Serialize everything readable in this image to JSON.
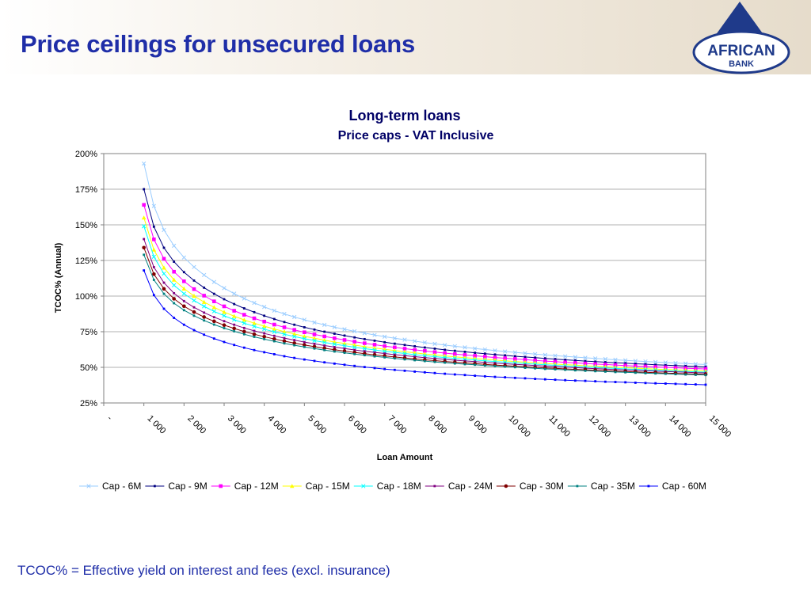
{
  "header": {
    "title": "Price ceilings for unsecured loans"
  },
  "logo": {
    "line1": "AFRICAN",
    "line2": "BANK"
  },
  "footnote": "TCOC% = Effective yield on interest and fees (excl. insurance)",
  "colors": {
    "title": "#1f2ea8"
  },
  "chart_data": {
    "type": "line",
    "title": "Long-term loans",
    "subtitle": "Price caps - VAT Inclusive",
    "xlabel": "Loan Amount",
    "ylabel": "TCOC% (Annual)",
    "ylim": [
      25,
      200
    ],
    "yticks": [
      "25%",
      "50%",
      "75%",
      "100%",
      "125%",
      "150%",
      "175%",
      "200%"
    ],
    "xlim": [
      0,
      15000
    ],
    "xticks": [
      "-",
      "1 000",
      "2 000",
      "3 000",
      "4 000",
      "5 000",
      "6 000",
      "7 000",
      "8 000",
      "9 000",
      "10 000",
      "11 000",
      "12 000",
      "13 000",
      "14 000",
      "15 000"
    ],
    "grid": true,
    "legend": "bottom",
    "x": [
      1000,
      1250,
      1500,
      1750,
      2000,
      2250,
      2500,
      2750,
      3000,
      3250,
      3500,
      3750,
      4000,
      4250,
      4500,
      4750,
      5000,
      5250,
      5500,
      5750,
      6000,
      6250,
      6500,
      6750,
      7000,
      7250,
      7500,
      7750,
      8000,
      8250,
      8500,
      8750,
      9000,
      9250,
      9500,
      9750,
      10000,
      10250,
      10500,
      10750,
      11000,
      11250,
      11500,
      11750,
      12000,
      12250,
      12500,
      12750,
      13000,
      13250,
      13500,
      13750,
      14000,
      14250,
      14500,
      14750,
      15000
    ],
    "series": [
      {
        "name": "Cap - 6M",
        "color": "#99ccff",
        "marker": "x",
        "values": [
          193.0,
          163.2,
          146.4,
          135.3,
          127.1,
          120.4,
          114.8,
          109.9,
          105.6,
          101.7,
          98.3,
          95.2,
          92.4,
          89.8,
          87.5,
          85.3,
          83.4,
          81.5,
          79.8,
          78.2,
          76.7,
          75.3,
          74.0,
          72.7,
          71.5,
          70.4,
          69.4,
          68.4,
          67.4,
          66.5,
          65.6,
          64.8,
          64.0,
          63.2,
          62.5,
          61.8,
          61.1,
          60.5,
          59.9,
          59.3,
          58.7,
          58.2,
          57.7,
          57.2,
          56.7,
          56.2,
          55.8,
          55.3,
          54.9,
          54.5,
          54.1,
          53.7,
          53.4,
          53.0,
          52.7,
          52.3,
          52.0
        ]
      },
      {
        "name": "Cap - 9M",
        "color": "#000080",
        "marker": "dash",
        "values": [
          175.0,
          148.7,
          133.9,
          124.1,
          116.8,
          110.9,
          105.9,
          101.6,
          97.8,
          94.4,
          91.4,
          88.7,
          86.2,
          83.9,
          81.8,
          79.9,
          78.1,
          76.5,
          75.0,
          73.6,
          72.3,
          71.0,
          69.8,
          68.7,
          67.6,
          66.6,
          65.7,
          64.8,
          63.9,
          63.1,
          62.3,
          61.6,
          60.9,
          60.2,
          59.6,
          59.0,
          58.4,
          57.8,
          57.3,
          56.8,
          56.3,
          55.8,
          55.3,
          54.9,
          54.4,
          54.0,
          53.6,
          53.2,
          52.9,
          52.5,
          52.2,
          51.8,
          51.5,
          51.2,
          50.9,
          50.6,
          50.3
        ]
      },
      {
        "name": "Cap - 12M",
        "color": "#ff00ff",
        "marker": "square",
        "values": [
          164.0,
          139.8,
          126.2,
          117.1,
          110.4,
          104.9,
          100.3,
          96.3,
          92.8,
          89.7,
          86.9,
          84.4,
          82.1,
          80.0,
          78.1,
          76.3,
          74.6,
          73.1,
          71.7,
          70.4,
          69.2,
          68.0,
          66.9,
          65.9,
          64.9,
          64.0,
          63.1,
          62.3,
          61.5,
          60.7,
          60.0,
          59.3,
          58.7,
          58.1,
          57.5,
          56.9,
          56.4,
          55.9,
          55.4,
          54.9,
          54.4,
          54.0,
          53.5,
          53.1,
          52.7,
          52.3,
          52.0,
          51.6,
          51.3,
          50.9,
          50.6,
          50.3,
          50.0,
          49.7,
          49.4,
          49.1,
          48.9
        ]
      },
      {
        "name": "Cap - 15M",
        "color": "#ffff00",
        "marker": "triangle",
        "values": [
          155.0,
          132.5,
          119.9,
          111.4,
          105.2,
          100.1,
          95.8,
          92.1,
          88.8,
          85.9,
          83.3,
          81.0,
          78.9,
          76.9,
          75.1,
          73.4,
          71.8,
          70.4,
          69.1,
          67.8,
          66.7,
          65.6,
          64.5,
          63.6,
          62.6,
          61.8,
          60.9,
          60.2,
          59.4,
          58.7,
          58.0,
          57.4,
          56.8,
          56.2,
          55.6,
          55.1,
          54.6,
          54.1,
          53.6,
          53.2,
          52.7,
          52.3,
          51.9,
          51.5,
          51.1,
          50.8,
          50.4,
          50.1,
          49.8,
          49.4,
          49.1,
          48.8,
          48.5,
          48.3,
          48.0,
          47.7,
          47.5
        ]
      },
      {
        "name": "Cap - 18M",
        "color": "#00ffff",
        "marker": "x",
        "values": [
          149.0,
          127.6,
          115.7,
          107.6,
          101.7,
          96.9,
          92.8,
          89.3,
          86.2,
          83.4,
          81.0,
          78.8,
          76.8,
          74.9,
          73.2,
          71.6,
          70.1,
          68.7,
          67.5,
          66.3,
          65.2,
          64.1,
          63.1,
          62.2,
          61.3,
          60.5,
          59.7,
          58.9,
          58.2,
          57.5,
          56.9,
          56.3,
          55.7,
          55.1,
          54.6,
          54.1,
          53.6,
          53.1,
          52.6,
          52.2,
          51.8,
          51.4,
          51.0,
          50.6,
          50.2,
          49.9,
          49.5,
          49.2,
          48.9,
          48.6,
          48.3,
          48.0,
          47.7,
          47.4,
          47.1,
          46.9,
          46.6
        ]
      },
      {
        "name": "Cap - 24M",
        "color": "#800080",
        "marker": "dash",
        "values": [
          140.0,
          120.3,
          109.4,
          102.0,
          96.5,
          92.1,
          88.4,
          85.2,
          82.4,
          79.9,
          77.6,
          75.6,
          73.8,
          72.1,
          70.5,
          69.1,
          67.7,
          66.5,
          65.3,
          64.2,
          63.2,
          62.2,
          61.3,
          60.5,
          59.7,
          58.9,
          58.2,
          57.5,
          56.8,
          56.2,
          55.6,
          55.0,
          54.5,
          54.0,
          53.5,
          53.0,
          52.5,
          52.1,
          51.7,
          51.3,
          50.9,
          50.5,
          50.1,
          49.8,
          49.4,
          49.1,
          48.8,
          48.5,
          48.2,
          47.9,
          47.6,
          47.3,
          47.1,
          46.8,
          46.6,
          46.3,
          46.1
        ]
      },
      {
        "name": "Cap - 30M",
        "color": "#800000",
        "marker": "circle",
        "values": [
          134.0,
          115.4,
          105.1,
          98.1,
          92.9,
          88.8,
          85.3,
          82.3,
          79.6,
          77.3,
          75.1,
          73.2,
          71.5,
          69.9,
          68.4,
          67.0,
          65.7,
          64.5,
          63.4,
          62.4,
          61.4,
          60.5,
          59.6,
          58.8,
          58.0,
          57.3,
          56.6,
          55.9,
          55.3,
          54.7,
          54.1,
          53.6,
          53.1,
          52.6,
          52.1,
          51.6,
          51.2,
          50.8,
          50.4,
          50.0,
          49.6,
          49.3,
          48.9,
          48.6,
          48.3,
          48.0,
          47.7,
          47.4,
          47.1,
          46.8,
          46.5,
          46.3,
          46.0,
          45.8,
          45.5,
          45.3,
          45.1
        ]
      },
      {
        "name": "Cap - 35M",
        "color": "#008080",
        "marker": "dash",
        "values": [
          129.0,
          111.4,
          101.6,
          95.0,
          90.1,
          86.2,
          82.9,
          80.0,
          77.5,
          75.3,
          73.2,
          71.4,
          69.8,
          68.3,
          66.8,
          65.5,
          64.3,
          63.2,
          62.1,
          61.1,
          60.2,
          59.3,
          58.5,
          57.7,
          57.0,
          56.3,
          55.6,
          55.0,
          54.4,
          53.8,
          53.3,
          52.7,
          52.2,
          51.8,
          51.3,
          50.9,
          50.5,
          50.1,
          49.7,
          49.3,
          48.9,
          48.6,
          48.3,
          47.9,
          47.6,
          47.3,
          47.0,
          46.7,
          46.5,
          46.2,
          45.9,
          45.7,
          45.5,
          45.2,
          45.0,
          44.8,
          44.6
        ]
      },
      {
        "name": "Cap - 60M",
        "color": "#0000ff",
        "marker": "dash",
        "values": [
          118.0,
          100.7,
          91.1,
          84.7,
          79.9,
          76.1,
          72.9,
          70.2,
          67.8,
          65.7,
          63.8,
          62.1,
          60.6,
          59.2,
          57.8,
          56.6,
          55.5,
          54.5,
          53.5,
          52.6,
          51.8,
          51.0,
          50.2,
          49.5,
          48.8,
          48.2,
          47.6,
          47.0,
          46.5,
          46.0,
          45.5,
          45.0,
          44.6,
          44.1,
          43.7,
          43.3,
          43.0,
          42.6,
          42.3,
          41.9,
          41.6,
          41.3,
          41.0,
          40.7,
          40.5,
          40.2,
          39.9,
          39.7,
          39.5,
          39.2,
          39.0,
          38.8,
          38.6,
          38.4,
          38.2,
          38.0,
          37.8
        ]
      }
    ]
  }
}
